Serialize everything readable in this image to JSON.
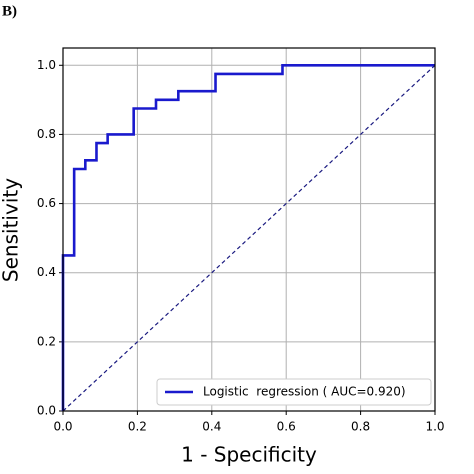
{
  "chart_data": {
    "type": "line",
    "panel_label": "B)",
    "xlabel": "1 - Specificity",
    "ylabel": "Sensitivity",
    "xlim": [
      0,
      1
    ],
    "ylim": [
      0,
      1.05
    ],
    "xticks": [
      {
        "value": 0,
        "label": "0.0"
      },
      0.2,
      0.4,
      0.6,
      0.8,
      {
        "value": 1,
        "label": "1.0"
      }
    ],
    "yticks": [
      {
        "value": 0,
        "label": "0.0"
      },
      0.2,
      0.4,
      0.6,
      0.8,
      {
        "value": 1,
        "label": "1.0"
      }
    ],
    "grid": true,
    "legend": "lower right",
    "series": [
      {
        "name": "Logistic  regression ( AUC=0.920)",
        "color": "#1a1acd",
        "style": "solid",
        "x": [
          0,
          0,
          0.03,
          0.03,
          0.06,
          0.06,
          0.09,
          0.09,
          0.12,
          0.12,
          0.19,
          0.19,
          0.25,
          0.25,
          0.31,
          0.31,
          0.41,
          0.41,
          0.59,
          0.59,
          1
        ],
        "values": [
          0,
          0.45,
          0.45,
          0.7,
          0.7,
          0.725,
          0.725,
          0.775,
          0.775,
          0.8,
          0.8,
          0.875,
          0.875,
          0.9,
          0.9,
          0.925,
          0.925,
          0.975,
          0.975,
          1,
          1
        ]
      },
      {
        "color": "#1a1a80",
        "style": "dashed",
        "x": [
          0,
          1
        ],
        "values": [
          0,
          1
        ]
      }
    ]
  }
}
